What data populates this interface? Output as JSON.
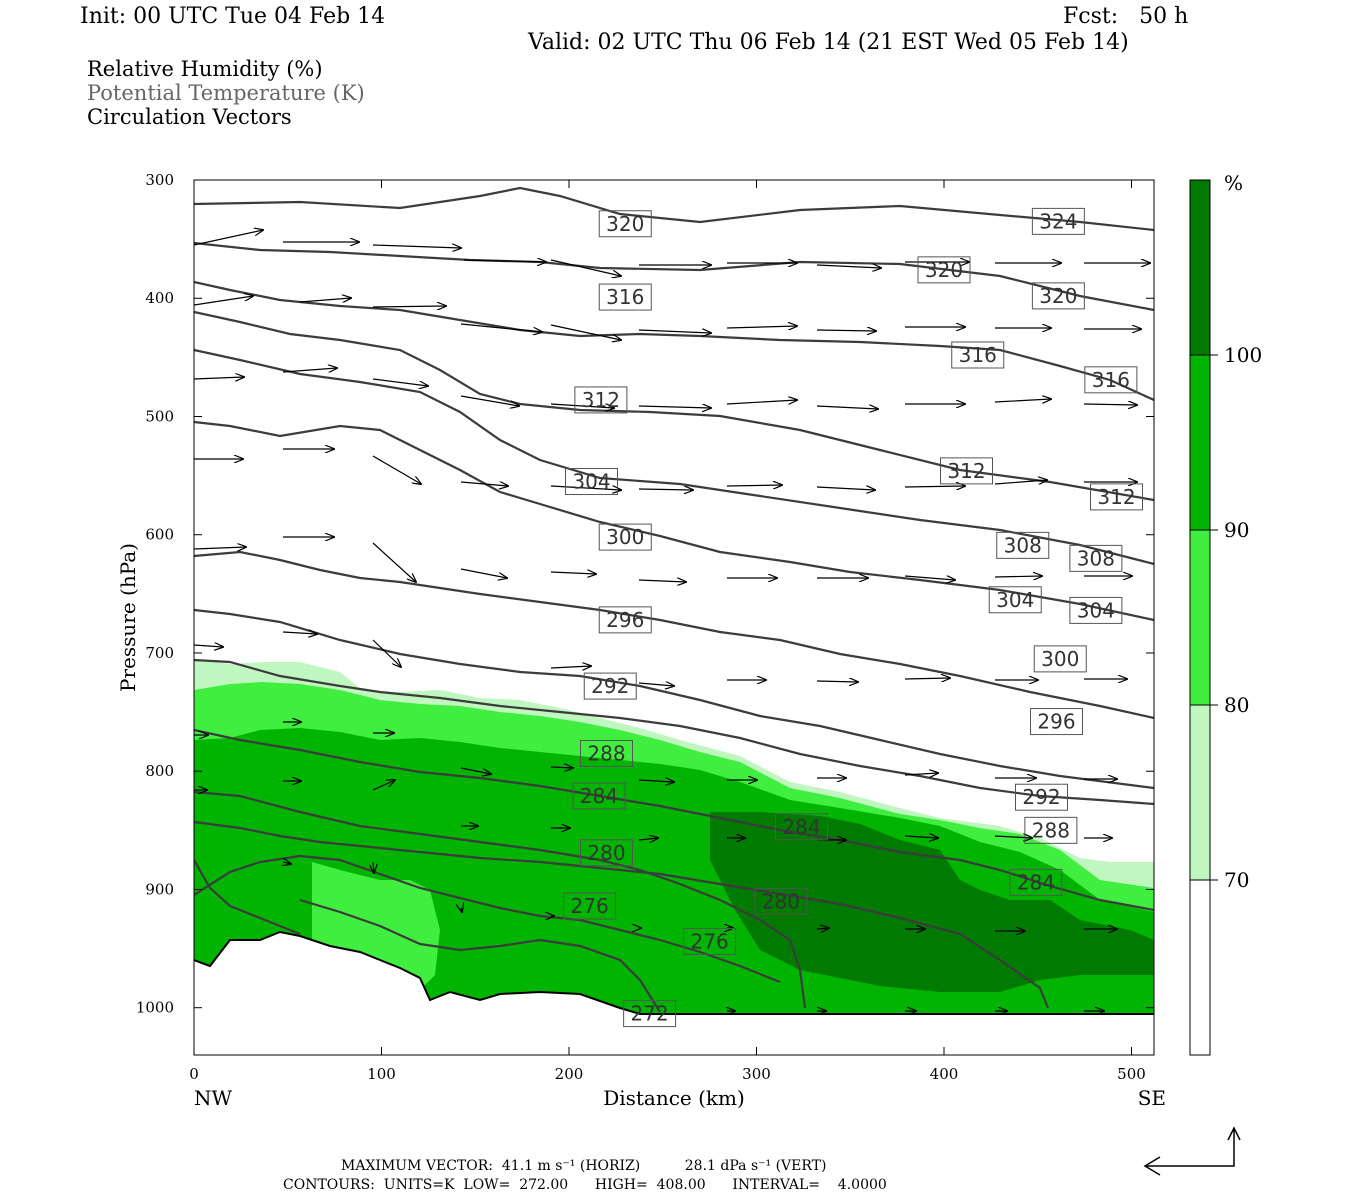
{
  "header": {
    "init": "Init: 00 UTC Tue 04 Feb 14",
    "fcst": "Fcst:   50 h",
    "valid": "Valid: 02 UTC Thu 06 Feb 14 (21 EST Wed 05 Feb 14)"
  },
  "fields": {
    "rh": "Relative Humidity (%)",
    "theta": "Potential Temperature (K)",
    "vectors": "Circulation Vectors"
  },
  "footer": {
    "maxvec": "MAXIMUM VECTOR:  41.1 m s⁻¹ (HORIZ)          28.1 dPa s⁻¹ (VERT)",
    "contours": "CONTOURS:  UNITS=K  LOW=  272.00      HIGH=  408.00      INTERVAL=    4.0000"
  },
  "colors": {
    "rh70": "#c0f7c0",
    "rh80": "#40ee40",
    "rh90": "#00b400",
    "rh100": "#007a00",
    "contour": "#3c3c3c"
  },
  "chart_data": {
    "type": "cross-section",
    "xlabel": "Distance (km)",
    "ylabel": "Pressure (hPa)",
    "x_ticks": [
      0,
      100,
      200,
      300,
      400,
      500
    ],
    "y_ticks": [
      300,
      400,
      500,
      600,
      700,
      800,
      900,
      1000
    ],
    "xlim": [
      0,
      512
    ],
    "ylim": [
      1040,
      300
    ],
    "endpoints": {
      "left": "NW",
      "right": "SE"
    },
    "colorbar": {
      "unit": "%",
      "levels": [
        70,
        80,
        90,
        100
      ]
    },
    "theta_contour_labels": [
      {
        "value": "320",
        "x": 230,
        "p": 337
      },
      {
        "value": "324",
        "x": 461,
        "p": 335
      },
      {
        "value": "320",
        "x": 400,
        "p": 376
      },
      {
        "value": "316",
        "x": 230,
        "p": 399
      },
      {
        "value": "320",
        "x": 461,
        "p": 398
      },
      {
        "value": "316",
        "x": 418,
        "p": 448
      },
      {
        "value": "316",
        "x": 489,
        "p": 469
      },
      {
        "value": "312",
        "x": 217,
        "p": 486
      },
      {
        "value": "304",
        "x": 212,
        "p": 555
      },
      {
        "value": "312",
        "x": 412,
        "p": 546
      },
      {
        "value": "312",
        "x": 492,
        "p": 568
      },
      {
        "value": "300",
        "x": 230,
        "p": 602
      },
      {
        "value": "308",
        "x": 442,
        "p": 609
      },
      {
        "value": "308",
        "x": 481,
        "p": 620
      },
      {
        "value": "304",
        "x": 438,
        "p": 655
      },
      {
        "value": "304",
        "x": 481,
        "p": 664
      },
      {
        "value": "296",
        "x": 230,
        "p": 672
      },
      {
        "value": "300",
        "x": 462,
        "p": 705
      },
      {
        "value": "292",
        "x": 222,
        "p": 728
      },
      {
        "value": "296",
        "x": 460,
        "p": 758
      },
      {
        "value": "288",
        "x": 220,
        "p": 785
      },
      {
        "value": "284",
        "x": 216,
        "p": 821
      },
      {
        "value": "292",
        "x": 452,
        "p": 822
      },
      {
        "value": "284",
        "x": 324,
        "p": 847
      },
      {
        "value": "288",
        "x": 457,
        "p": 850
      },
      {
        "value": "280",
        "x": 220,
        "p": 869
      },
      {
        "value": "284",
        "x": 449,
        "p": 894
      },
      {
        "value": "280",
        "x": 313,
        "p": 910
      },
      {
        "value": "276",
        "x": 211,
        "p": 914
      },
      {
        "value": "276",
        "x": 275,
        "p": 944
      },
      {
        "value": "272",
        "x": 243,
        "p": 1005
      }
    ]
  }
}
